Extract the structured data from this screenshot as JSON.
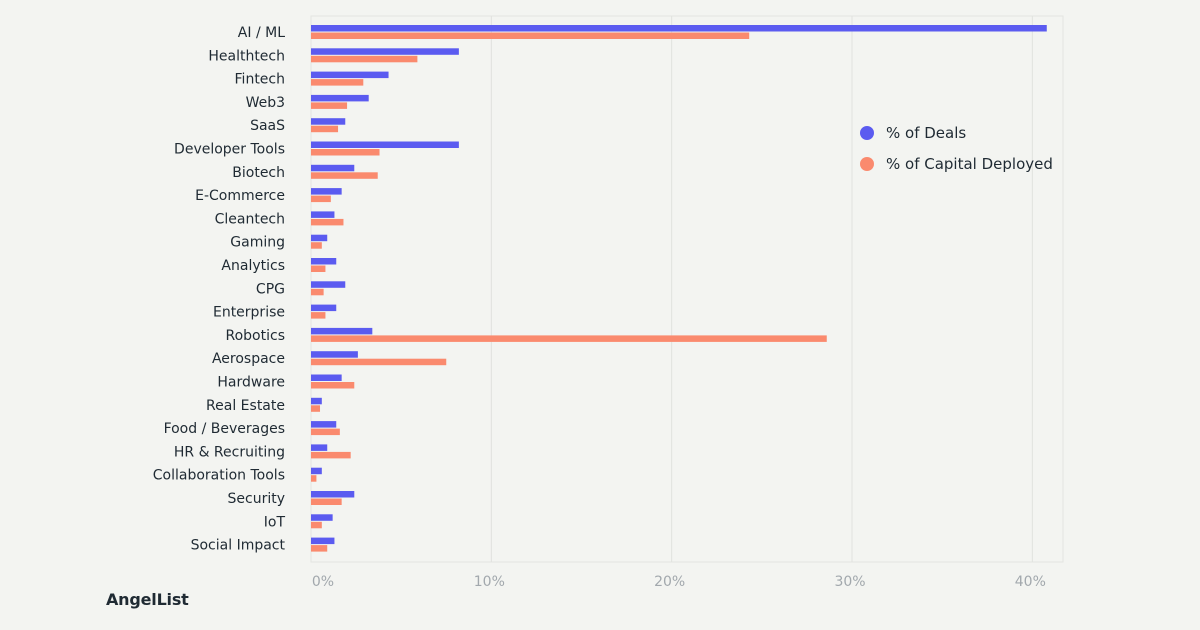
{
  "brand": {
    "name": "AngelList"
  },
  "colors": {
    "deals": "#5b5bf0",
    "capital": "#fa8a6e"
  },
  "chart_data": {
    "type": "bar",
    "orientation": "horizontal",
    "categories": [
      "AI / ML",
      "Healthtech",
      "Fintech",
      "Web3",
      "SaaS",
      "Developer Tools",
      "Biotech",
      "E-Commerce",
      "Cleantech",
      "Gaming",
      "Analytics",
      "CPG",
      "Enterprise",
      "Robotics",
      "Aerospace",
      "Hardware",
      "Real Estate",
      "Food / Beverages",
      "HR & Recruiting",
      "Collaboration Tools",
      "Security",
      "IoT",
      "Social Impact"
    ],
    "series": [
      {
        "name": "% of Deals",
        "color": "#5b5bf0",
        "values": [
          40.8,
          8.2,
          4.3,
          3.2,
          1.9,
          8.2,
          2.4,
          1.7,
          1.3,
          0.9,
          1.4,
          1.9,
          1.4,
          3.4,
          2.6,
          1.7,
          0.6,
          1.4,
          0.9,
          0.6,
          2.4,
          1.2,
          1.3
        ]
      },
      {
        "name": "% of Capital Deployed",
        "color": "#fa8a6e",
        "values": [
          24.3,
          5.9,
          2.9,
          2.0,
          1.5,
          3.8,
          3.7,
          1.1,
          1.8,
          0.6,
          0.8,
          0.7,
          0.8,
          28.6,
          7.5,
          2.4,
          0.5,
          1.6,
          2.2,
          0.3,
          1.7,
          0.6,
          0.9
        ]
      }
    ],
    "xlim": [
      0,
      41.7
    ],
    "xticks": [
      0,
      10,
      20,
      30,
      40
    ],
    "xtick_labels": [
      "0%",
      "10%",
      "20%",
      "30%",
      "40%"
    ],
    "grid": true,
    "legend": "right",
    "title": "",
    "xlabel": "",
    "ylabel": ""
  }
}
